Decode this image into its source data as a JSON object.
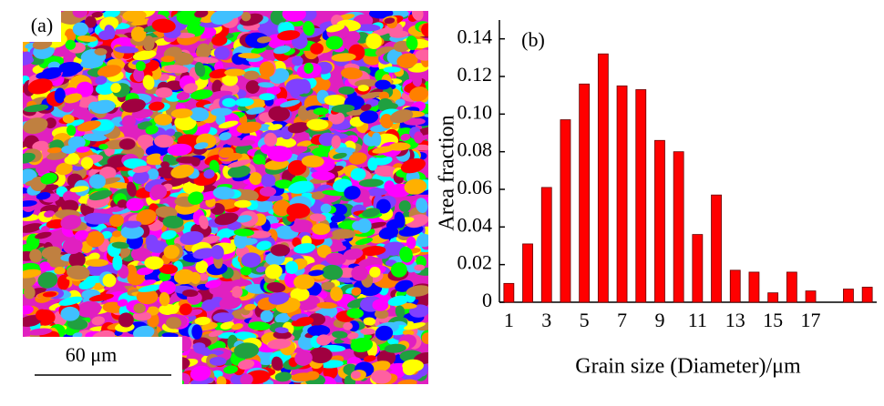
{
  "image_panel": {
    "label": "(a)",
    "scale_bar": "60 μm"
  },
  "chart_data": {
    "type": "bar",
    "panel_label": "(b)",
    "y_label": "Area fraction",
    "x_label": "Grain size (Diameter)/μm",
    "categories": [
      "1",
      null,
      "3",
      null,
      "5",
      null,
      "7",
      null,
      "9",
      null,
      "11",
      null,
      "13",
      null,
      "15",
      null,
      "17",
      null,
      null,
      null
    ],
    "values": [
      0.01,
      0.031,
      0.061,
      0.097,
      0.116,
      0.132,
      0.115,
      0.113,
      0.086,
      0.08,
      0.036,
      0.057,
      0.017,
      0.016,
      0.005,
      0.016,
      0.006,
      null,
      0.007,
      0.008
    ],
    "color": "#ff0000",
    "ylim": [
      0,
      0.15
    ],
    "yticks": [
      0,
      0.02,
      0.04,
      0.06,
      0.08,
      {
        "value": 0.1,
        "label": "0.10"
      },
      0.12,
      0.14
    ],
    "grid": false
  }
}
